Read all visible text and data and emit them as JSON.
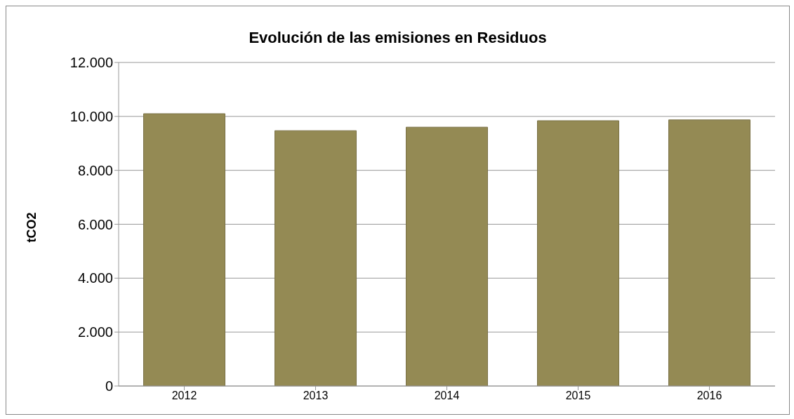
{
  "chart_data": {
    "type": "bar",
    "title": "Evolución de las emisiones en Residuos",
    "ylabel": "tCO2",
    "categories": [
      "2012",
      "2013",
      "2014",
      "2015",
      "2016"
    ],
    "values": [
      10100,
      9470,
      9600,
      9840,
      9870
    ],
    "color": "#948a54",
    "ylim": [
      0,
      12000
    ],
    "yticks": [
      {
        "value": 0,
        "label": "0"
      },
      {
        "value": 2000,
        "label": "2.000"
      },
      {
        "value": 4000,
        "label": "4.000"
      },
      {
        "value": 6000,
        "label": "6.000"
      },
      {
        "value": 8000,
        "label": "8.000"
      },
      {
        "value": 10000,
        "label": "10.000"
      },
      {
        "value": 12000,
        "label": "12.000"
      }
    ],
    "grid": "y"
  }
}
